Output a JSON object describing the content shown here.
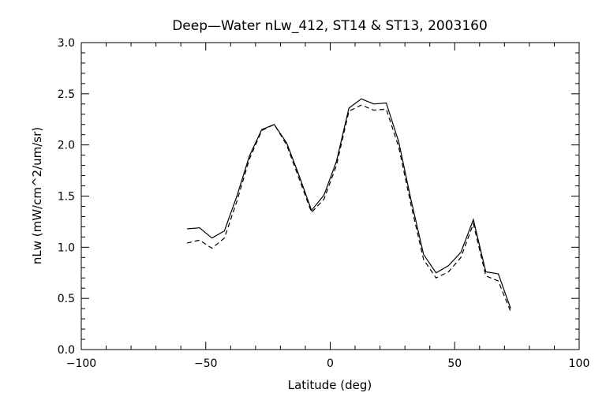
{
  "chart_data": {
    "type": "line",
    "title": "Deep—Water nLw_412, ST14 & ST13, 2003160",
    "xlabel": "Latitude (deg)",
    "ylabel": "nLw (mW/cm^2/um/sr)",
    "xlim": [
      -100,
      100
    ],
    "ylim": [
      0.0,
      3.0
    ],
    "xticks": [
      -100,
      -50,
      0,
      50,
      100
    ],
    "xtick_labels": [
      "−100",
      "−50",
      "0",
      "50",
      "100"
    ],
    "yticks": [
      0.0,
      0.5,
      1.0,
      1.5,
      2.0,
      2.5,
      3.0
    ],
    "ytick_labels": [
      "0.0",
      "0.5",
      "1.0",
      "1.5",
      "2.0",
      "2.5",
      "3.0"
    ],
    "legend": "none",
    "grid": false,
    "series": [
      {
        "style": "solid",
        "x": [
          -57.5,
          -52.5,
          -47.5,
          -42.5,
          -37.5,
          -32.5,
          -27.5,
          -22.5,
          -17.5,
          -12.5,
          -7.5,
          -2.5,
          2.5,
          7.5,
          12.5,
          17.5,
          22.5,
          27.5,
          32.5,
          37.5,
          42.5,
          47.5,
          52.5,
          57.5,
          62.5,
          67.5,
          72.5
        ],
        "values": [
          1.18,
          1.19,
          1.09,
          1.16,
          1.5,
          1.89,
          2.15,
          2.2,
          2.02,
          1.7,
          1.36,
          1.51,
          1.84,
          2.36,
          2.45,
          2.4,
          2.41,
          2.03,
          1.46,
          0.93,
          0.75,
          0.82,
          0.95,
          1.27,
          0.76,
          0.74,
          0.4
        ]
      },
      {
        "style": "dashed",
        "x": [
          -57.5,
          -52.5,
          -47.5,
          -42.5,
          -37.5,
          -32.5,
          -27.5,
          -22.5,
          -17.5,
          -12.5,
          -7.5,
          -2.5,
          2.5,
          7.5,
          12.5,
          17.5,
          22.5,
          27.5,
          32.5,
          37.5,
          42.5,
          47.5,
          52.5,
          57.5,
          62.5,
          67.5,
          72.5
        ],
        "values": [
          1.04,
          1.07,
          0.99,
          1.09,
          1.45,
          1.86,
          2.14,
          2.2,
          2.0,
          1.67,
          1.34,
          1.47,
          1.8,
          2.33,
          2.39,
          2.34,
          2.35,
          1.98,
          1.41,
          0.88,
          0.7,
          0.76,
          0.9,
          1.23,
          0.72,
          0.67,
          0.37
        ]
      }
    ]
  }
}
